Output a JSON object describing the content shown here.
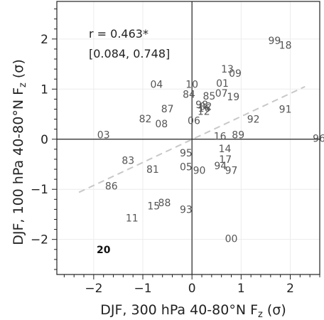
{
  "chart_data": {
    "type": "scatter",
    "xlabel": "DJF, 300 hPa 40-80°N  F",
    "xlabel_sub": "z",
    "xlabel_unit": " (σ)",
    "ylabel": "DJF, 100 hPa 40-80°N  F",
    "ylabel_sub": "z",
    "ylabel_unit": " (σ)",
    "xlim": [
      -2.75,
      2.6
    ],
    "ylim": [
      -2.7,
      2.75
    ],
    "xticks": [
      -2,
      -1,
      0,
      1,
      2
    ],
    "yticks": [
      -2,
      -1,
      0,
      1,
      2
    ],
    "grid": true,
    "regression_line": {
      "x": [
        -2.3,
        2.3
      ],
      "y": [
        -1.06,
        1.05
      ],
      "color": "#c8c8c8",
      "style": "dashed"
    },
    "annotations": {
      "r": "r = 0.463*",
      "ci": "[0.084, 0.748]"
    },
    "points": [
      {
        "label": "99",
        "x": 1.68,
        "y": 1.97
      },
      {
        "label": "18",
        "x": 1.9,
        "y": 1.88
      },
      {
        "label": "13",
        "x": 0.72,
        "y": 1.4
      },
      {
        "label": "09",
        "x": 0.88,
        "y": 1.32
      },
      {
        "label": "04",
        "x": -0.72,
        "y": 1.1
      },
      {
        "label": "10",
        "x": 0.0,
        "y": 1.1
      },
      {
        "label": "01",
        "x": 0.62,
        "y": 1.12
      },
      {
        "label": "84",
        "x": -0.06,
        "y": 0.9
      },
      {
        "label": "85",
        "x": 0.35,
        "y": 0.86
      },
      {
        "label": "07",
        "x": 0.6,
        "y": 0.92
      },
      {
        "label": "19",
        "x": 0.84,
        "y": 0.85
      },
      {
        "label": "98",
        "x": 0.2,
        "y": 0.69
      },
      {
        "label": "02",
        "x": 0.28,
        "y": 0.66
      },
      {
        "label": "16",
        "x": 0.25,
        "y": 0.62
      },
      {
        "label": "12",
        "x": 0.24,
        "y": 0.56
      },
      {
        "label": "87",
        "x": -0.5,
        "y": 0.61
      },
      {
        "label": "91",
        "x": 1.9,
        "y": 0.6
      },
      {
        "label": "82",
        "x": -0.95,
        "y": 0.41
      },
      {
        "label": "08",
        "x": -0.62,
        "y": 0.31
      },
      {
        "label": "06",
        "x": 0.04,
        "y": 0.37
      },
      {
        "label": "92",
        "x": 1.25,
        "y": 0.4
      },
      {
        "label": "03",
        "x": -1.8,
        "y": 0.09
      },
      {
        "label": "16",
        "x": 0.57,
        "y": 0.06
      },
      {
        "label": "89",
        "x": 0.94,
        "y": 0.09
      },
      {
        "label": "96",
        "x": 2.55,
        "y": 0.02
      },
      {
        "label": "14",
        "x": 0.67,
        "y": -0.19
      },
      {
        "label": "95",
        "x": -0.12,
        "y": -0.27
      },
      {
        "label": "83",
        "x": -1.3,
        "y": -0.42
      },
      {
        "label": "17",
        "x": 0.68,
        "y": -0.4
      },
      {
        "label": "05",
        "x": -0.12,
        "y": -0.55
      },
      {
        "label": "90",
        "x": 0.15,
        "y": -0.62
      },
      {
        "label": "94",
        "x": 0.58,
        "y": -0.53
      },
      {
        "label": "97",
        "x": 0.8,
        "y": -0.62
      },
      {
        "label": "81",
        "x": -0.8,
        "y": -0.6
      },
      {
        "label": "86",
        "x": -1.64,
        "y": -0.93
      },
      {
        "label": "15",
        "x": -0.78,
        "y": -1.33
      },
      {
        "label": "88",
        "x": -0.56,
        "y": -1.27
      },
      {
        "label": "93",
        "x": -0.12,
        "y": -1.4
      },
      {
        "label": "11",
        "x": -1.22,
        "y": -1.57
      },
      {
        "label": "00",
        "x": 0.8,
        "y": -1.98
      },
      {
        "label": "20",
        "x": -1.8,
        "y": -2.2,
        "bold": true
      }
    ]
  }
}
